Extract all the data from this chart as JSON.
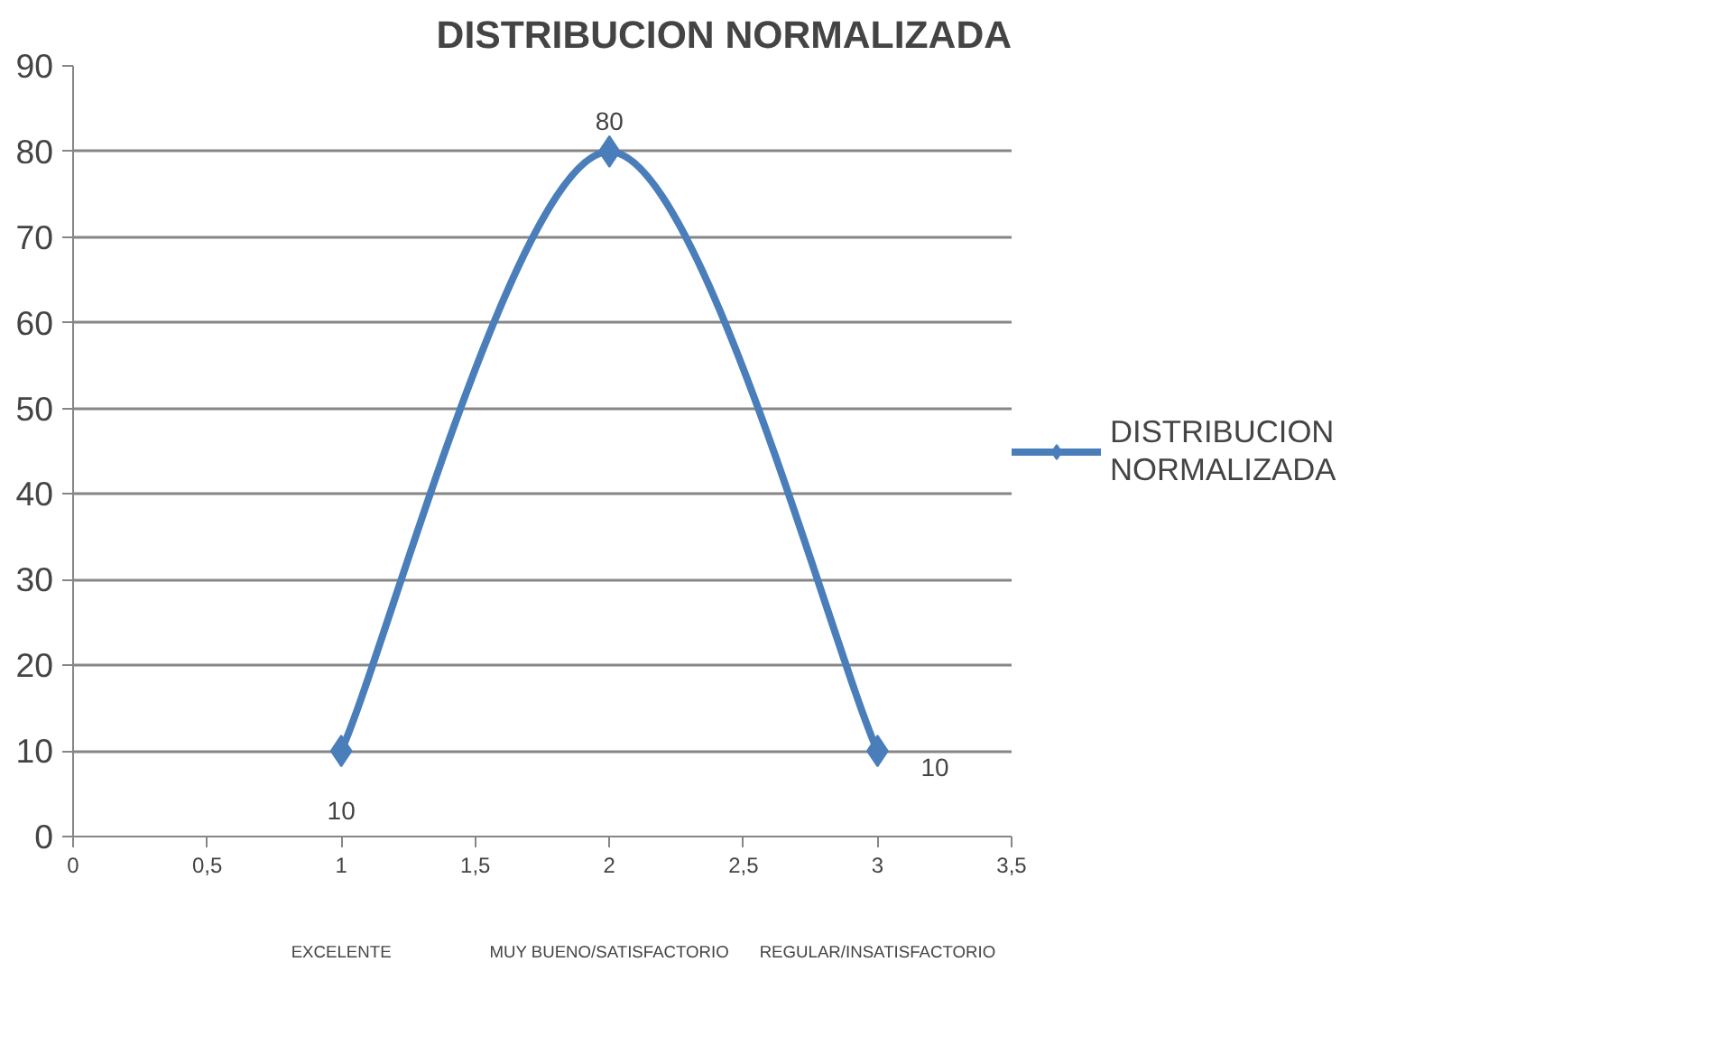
{
  "chart_data": {
    "type": "line",
    "title": "DISTRIBUCION NORMALIZADA",
    "x": [
      1,
      2,
      3
    ],
    "series": [
      {
        "name": "DISTRIBUCION NORMALIZADA",
        "color": "#4a7ebb",
        "values": [
          10,
          80,
          10
        ]
      }
    ],
    "xlim": [
      0,
      3.5
    ],
    "xticks": [
      0,
      {
        "value": 0.5,
        "label": "0,5"
      },
      1,
      {
        "value": 1.5,
        "label": "1,5"
      },
      2,
      {
        "value": 2.5,
        "label": "2,5"
      },
      3,
      {
        "value": 3.5,
        "label": "3,5"
      }
    ],
    "ylim": [
      0,
      90
    ],
    "yticks": [
      0,
      10,
      20,
      30,
      40,
      50,
      60,
      70,
      80,
      90
    ],
    "annotations": [
      "EXCELENTE",
      "MUY BUENO/SATISFACTORIO",
      "REGULAR/INSATISFACTORIO"
    ],
    "grid": "y",
    "legend": "right",
    "marker": "diamond",
    "line_style": "solid",
    "data_labels": true
  }
}
